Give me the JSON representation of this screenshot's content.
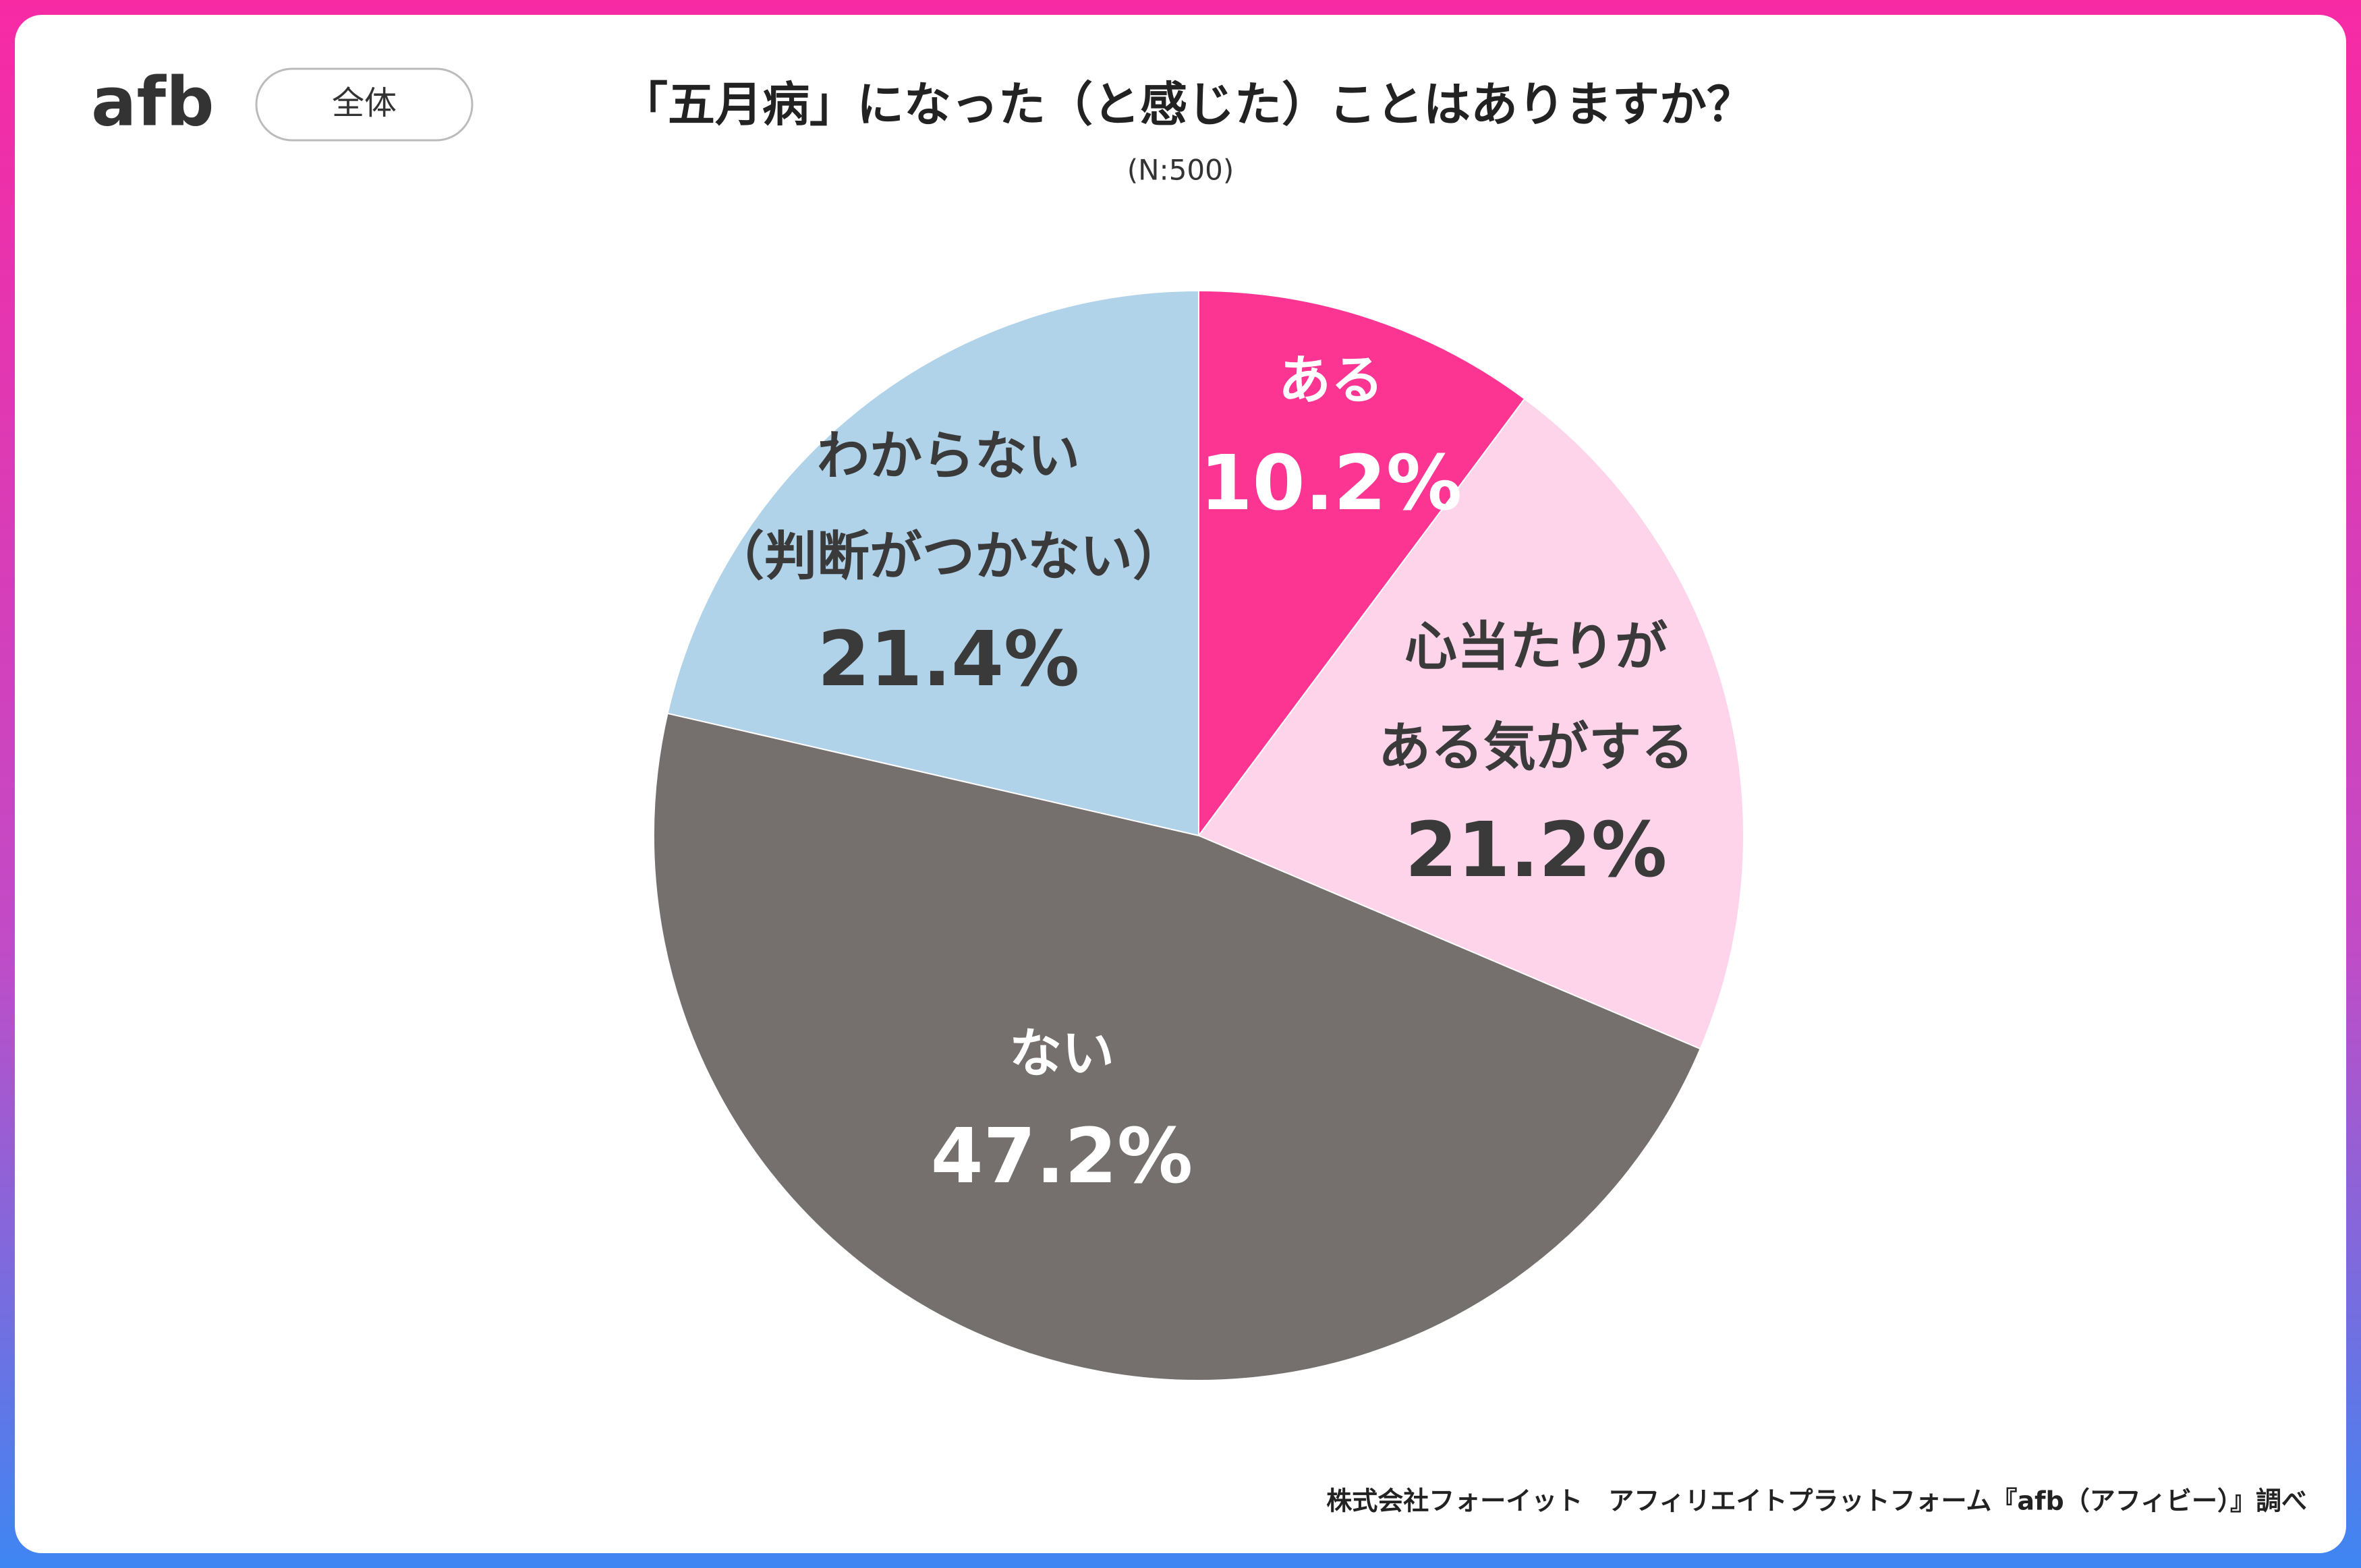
{
  "logo": "afb",
  "badge": "全体",
  "chart_data": {
    "type": "pie",
    "title": "「五月病」になった（と感じた）ことはありますか？",
    "subtitle": "(N:500)",
    "source": "株式会社フォーイット　アフィリエイトプラットフォーム『afb（アフィビー）』調べ",
    "categories": [
      [
        "ある"
      ],
      [
        "心当たりが",
        "ある気がする"
      ],
      [
        "ない"
      ],
      [
        "わからない",
        "（判断がつかない）"
      ]
    ],
    "values": [
      10.2,
      21.2,
      47.2,
      21.4
    ],
    "value_labels": [
      "10.2%",
      "21.2%",
      "47.2%",
      "21.4%"
    ],
    "colors": [
      "#fd3592",
      "#fdd4ea",
      "#75706d",
      "#b1d3ea"
    ]
  }
}
